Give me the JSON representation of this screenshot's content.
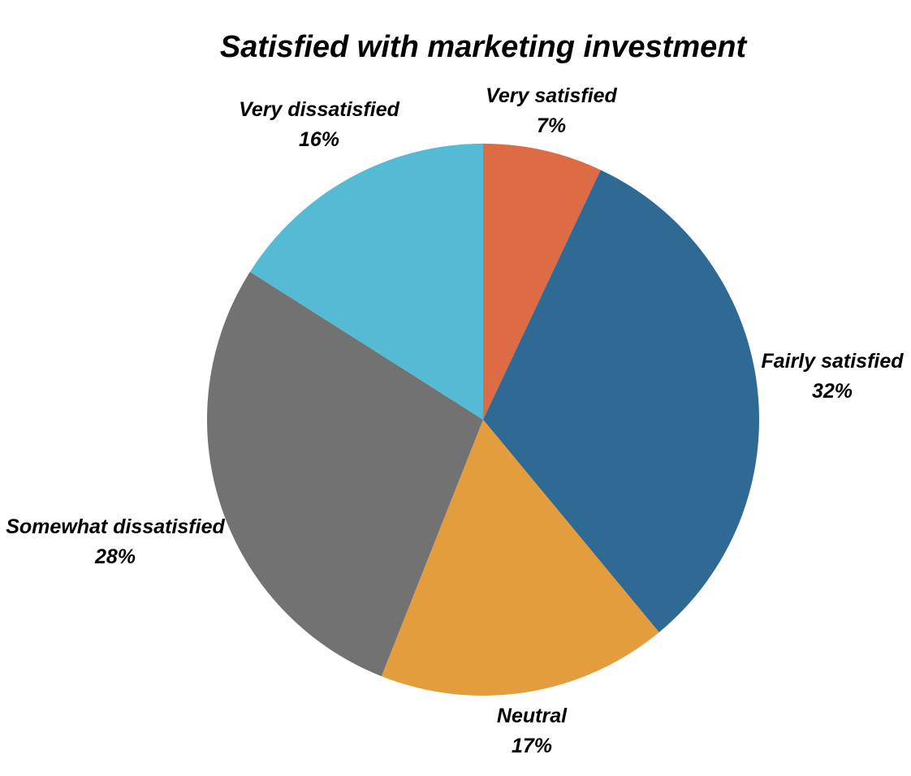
{
  "chart_data": {
    "type": "pie",
    "title": "Satisfied with marketing investment",
    "slices": [
      {
        "label": "Very satisfied",
        "value": 7,
        "display": "7%",
        "color": "#DD6B43"
      },
      {
        "label": "Fairly satisfied",
        "value": 32,
        "display": "32%",
        "color": "#2E6A93"
      },
      {
        "label": "Neutral",
        "value": 17,
        "display": "17%",
        "color": "#E49D3D"
      },
      {
        "label": "Somewhat dissatisfied",
        "value": 28,
        "display": "28%",
        "color": "#727272"
      },
      {
        "label": "Very dissatisfied",
        "value": 16,
        "display": "16%",
        "color": "#55BAD3"
      }
    ],
    "start": "12 o'clock",
    "direction": "clockwise",
    "legend": "none"
  }
}
